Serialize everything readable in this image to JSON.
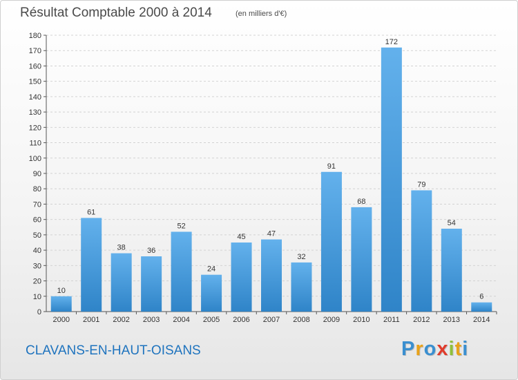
{
  "header": {
    "title": "Résultat Comptable 2000 à 2014",
    "subtitle": "(en milliers d'€)"
  },
  "footer": {
    "place": "CLAVANS-EN-HAUT-OISANS",
    "brand": "Proxiti",
    "brand_letters": [
      {
        "ch": "P",
        "color": "#3a8fd0"
      },
      {
        "ch": "r",
        "color": "#e8a21a"
      },
      {
        "ch": "o",
        "color": "#3a8fd0"
      },
      {
        "ch": "x",
        "color": "#e03c2c"
      },
      {
        "ch": "i",
        "color": "#8fc03a"
      },
      {
        "ch": "t",
        "color": "#e8a21a"
      },
      {
        "ch": "i",
        "color": "#3a8fd0"
      }
    ]
  },
  "colors": {
    "bar_light": "#63b1ec",
    "bar_dark": "#2f84c8",
    "grid": "#d2d2d2",
    "text": "#333333"
  },
  "chart_data": {
    "type": "bar",
    "title": "Résultat Comptable 2000 à 2014",
    "unit": "(en milliers d'€)",
    "xlabel": "",
    "ylabel": "",
    "categories": [
      "2000",
      "2001",
      "2002",
      "2003",
      "2004",
      "2005",
      "2006",
      "2007",
      "2008",
      "2009",
      "2010",
      "2011",
      "2012",
      "2013",
      "2014"
    ],
    "values": [
      10,
      61,
      38,
      36,
      52,
      24,
      45,
      47,
      32,
      91,
      68,
      172,
      79,
      54,
      6
    ],
    "ylim": [
      0,
      180
    ],
    "yticks": [
      0,
      10,
      20,
      30,
      40,
      50,
      60,
      70,
      80,
      90,
      100,
      110,
      120,
      130,
      140,
      150,
      160,
      170,
      180
    ],
    "grid": true,
    "data_labels": true
  }
}
